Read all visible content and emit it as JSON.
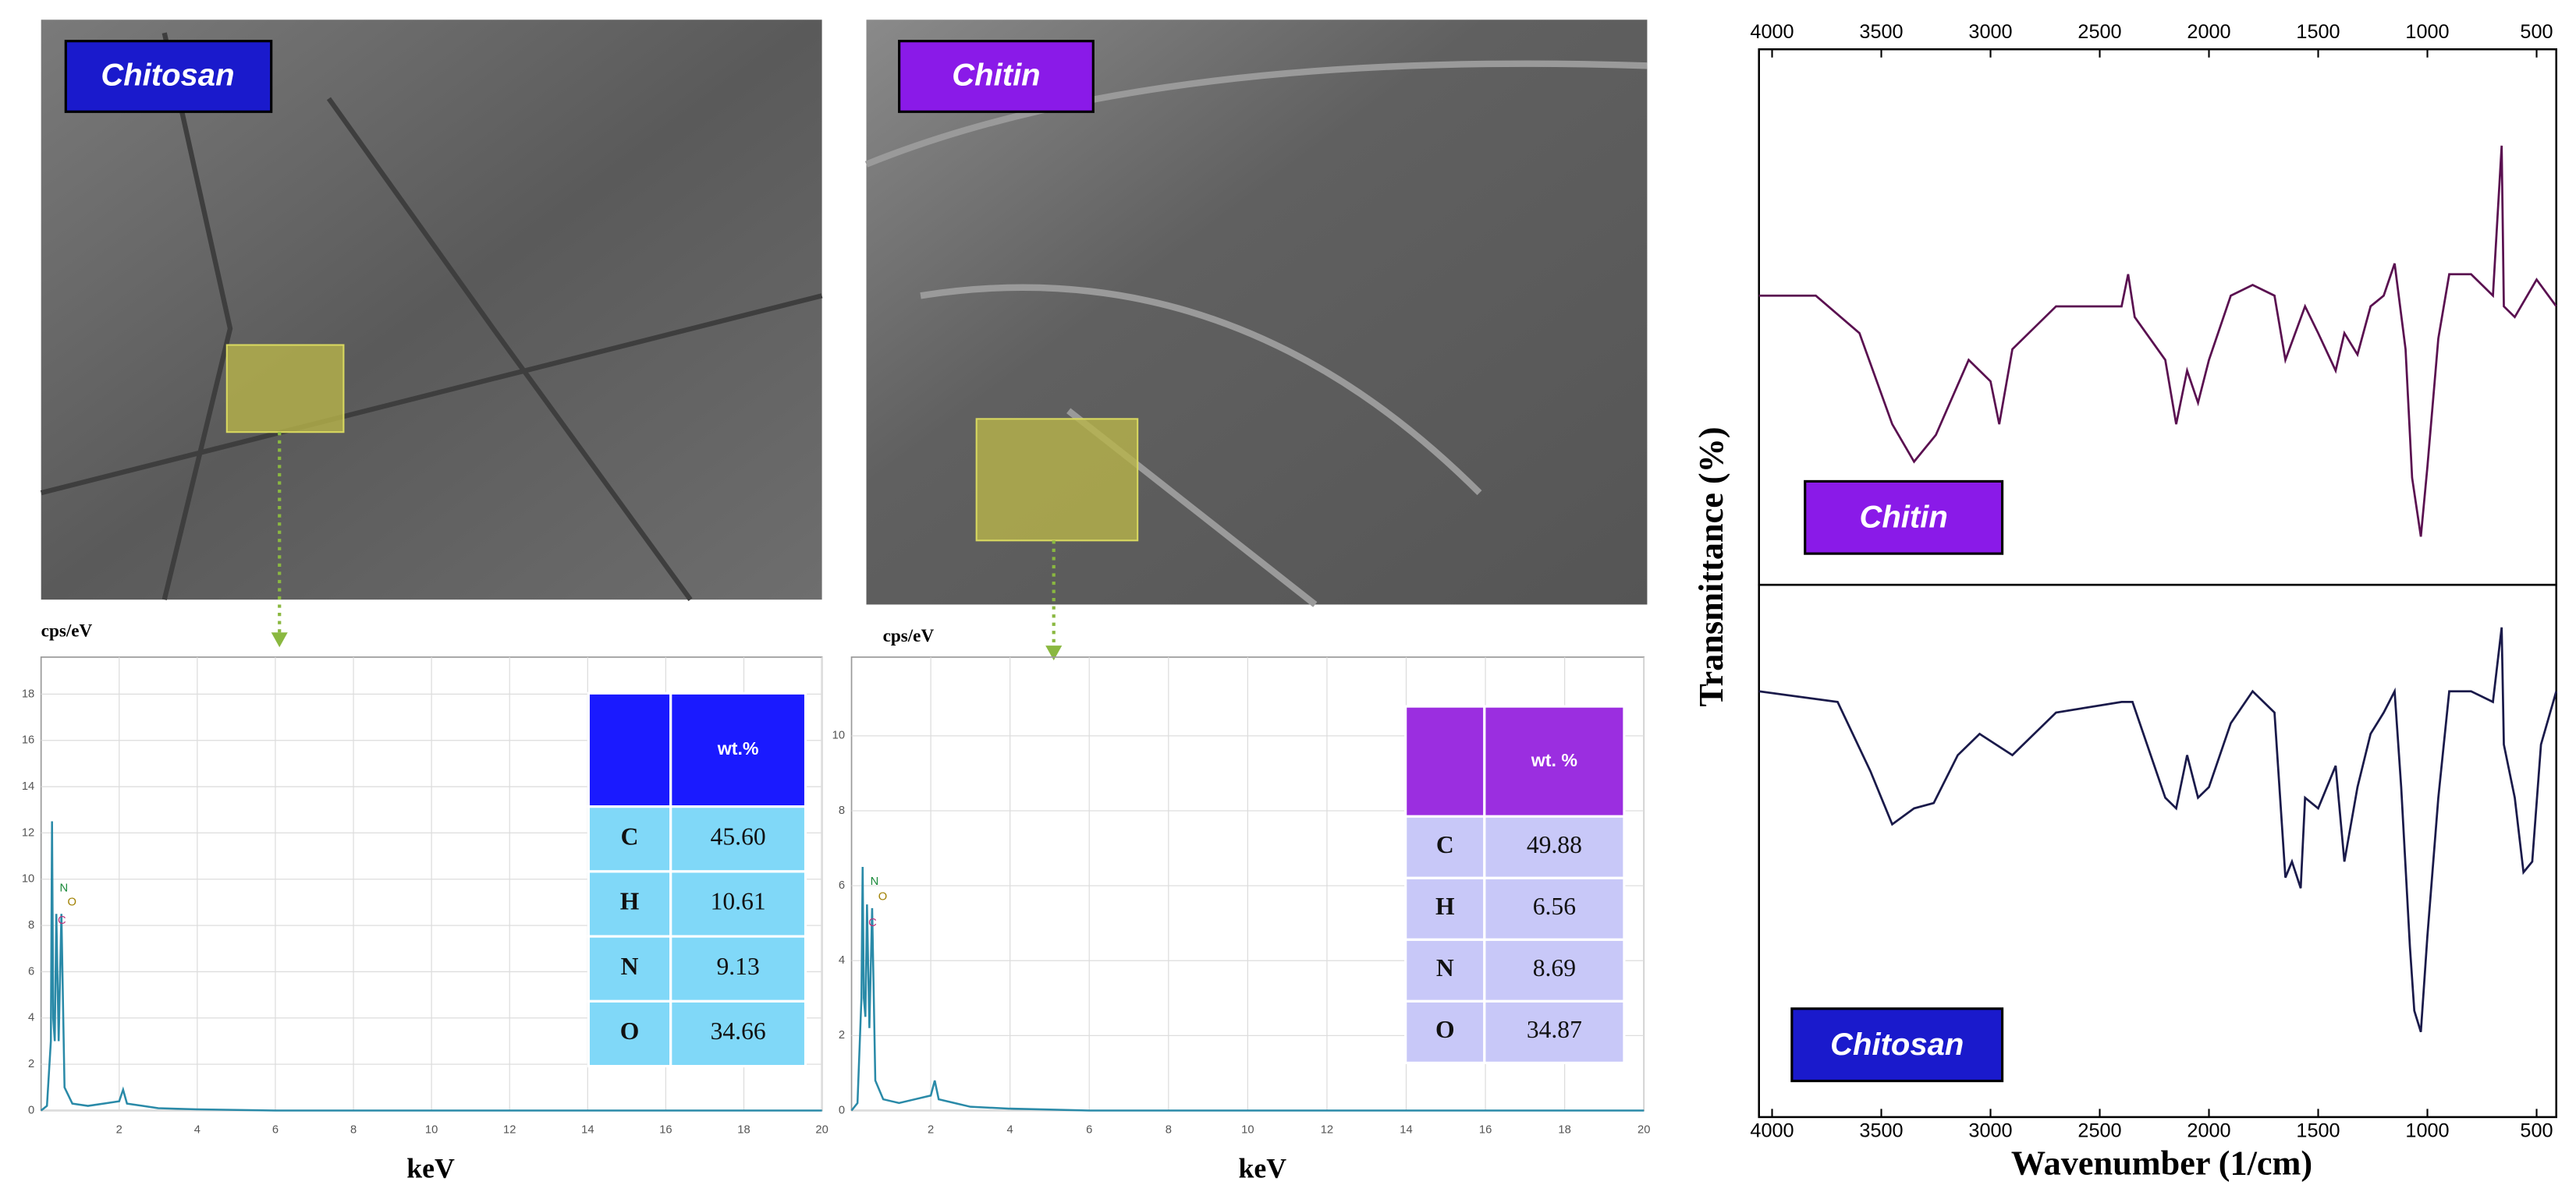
{
  "sem_images": [
    {
      "label": "Chitosan"
    },
    {
      "label": "Chitin"
    }
  ],
  "chart_data": [
    {
      "type": "line",
      "y_label": "cps/eV",
      "x_label": "keV",
      "xlim": [
        0,
        20
      ],
      "xticks": [
        2,
        4,
        6,
        8,
        10,
        12,
        14,
        16,
        18,
        20
      ],
      "ylim": [
        0,
        19.6
      ],
      "yticks": [
        0,
        2,
        4,
        6,
        8,
        10,
        12,
        14,
        16,
        18
      ],
      "grid": true,
      "series": [
        {
          "color": "#2a8aa8",
          "x": [
            0,
            0.15,
            0.25,
            0.28,
            0.31,
            0.35,
            0.39,
            0.45,
            0.52,
            0.6,
            0.8,
            1.2,
            1.6,
            2.0,
            2.1,
            2.2,
            2.6,
            3.0,
            4,
            6,
            10,
            20
          ],
          "values": [
            0,
            0.2,
            3,
            12.5,
            4,
            3,
            8.5,
            3,
            8.5,
            1,
            0.3,
            0.2,
            0.3,
            0.4,
            0.9,
            0.3,
            0.2,
            0.1,
            0.05,
            0,
            0,
            0
          ]
        }
      ],
      "peak_labels": [
        {
          "text": "N",
          "x": 0.35,
          "y": 9.6
        },
        {
          "text": "O",
          "x": 0.55,
          "y": 9.0
        },
        {
          "text": "C",
          "x": 0.3,
          "y": 8.2
        }
      ],
      "table": {
        "header": "wt.%",
        "header_color": "#1a1aff",
        "cell_color": "#80d8f8",
        "rows": [
          [
            "C",
            "45.60"
          ],
          [
            "H",
            "10.61"
          ],
          [
            "N",
            "9.13"
          ],
          [
            "O",
            "34.66"
          ]
        ]
      }
    },
    {
      "type": "line",
      "y_label": "cps/eV",
      "x_label": "keV",
      "xlim": [
        0,
        20
      ],
      "xticks": [
        2,
        4,
        6,
        8,
        10,
        12,
        14,
        16,
        18,
        20
      ],
      "ylim": [
        0,
        12.1
      ],
      "yticks": [
        0,
        2,
        4,
        6,
        8,
        10
      ],
      "grid": true,
      "series": [
        {
          "color": "#2a8aa8",
          "x": [
            0,
            0.15,
            0.25,
            0.28,
            0.31,
            0.35,
            0.39,
            0.45,
            0.52,
            0.6,
            0.8,
            1.2,
            1.6,
            2.0,
            2.1,
            2.2,
            2.6,
            3.0,
            4,
            6,
            10,
            20
          ],
          "values": [
            0,
            0.2,
            3,
            6.5,
            3,
            2.5,
            5.5,
            2.2,
            5.4,
            0.8,
            0.3,
            0.2,
            0.3,
            0.4,
            0.8,
            0.3,
            0.2,
            0.1,
            0.05,
            0,
            0,
            0
          ]
        }
      ],
      "peak_labels": [
        {
          "text": "N",
          "x": 0.35,
          "y": 6.1
        },
        {
          "text": "O",
          "x": 0.55,
          "y": 5.7
        },
        {
          "text": "C",
          "x": 0.3,
          "y": 5.0
        }
      ],
      "table": {
        "header": "wt. %",
        "header_color": "#9b2ee0",
        "cell_color": "#c8c8f8",
        "rows": [
          [
            "C",
            "49.88"
          ],
          [
            "H",
            "6.56"
          ],
          [
            "N",
            "8.69"
          ],
          [
            "O",
            "34.87"
          ]
        ]
      }
    },
    {
      "type": "line",
      "y_label": "Transmittance (%)",
      "label": "Chitin",
      "label_color": "#8a1ae8",
      "xlim": [
        4060,
        410
      ],
      "xticks": [
        4000,
        3500,
        3000,
        2500,
        2000,
        1500,
        1000,
        500
      ],
      "ylim": [
        0,
        100
      ],
      "series": [
        {
          "color": "#5a1050",
          "x": [
            4060,
            3800,
            3600,
            3450,
            3350,
            3250,
            3100,
            3000,
            2960,
            2900,
            2700,
            2400,
            2370,
            2340,
            2200,
            2150,
            2100,
            2050,
            2000,
            1900,
            1800,
            1700,
            1650,
            1560,
            1500,
            1420,
            1380,
            1320,
            1260,
            1200,
            1150,
            1100,
            1070,
            1030,
            1000,
            950,
            900,
            800,
            700,
            660,
            650,
            600,
            500,
            410
          ],
          "values": [
            54,
            54,
            47,
            30,
            23,
            28,
            42,
            38,
            30,
            44,
            52,
            52,
            58,
            50,
            42,
            30,
            40,
            34,
            42,
            54,
            56,
            54,
            42,
            52,
            47,
            40,
            47,
            43,
            52,
            54,
            60,
            44,
            20,
            9,
            22,
            46,
            58,
            58,
            54,
            82,
            52,
            50,
            57,
            52
          ]
        }
      ]
    },
    {
      "type": "line",
      "x_label": "Wavenumber (1/cm)",
      "label": "Chitosan",
      "label_color": "#1a1acc",
      "xlim": [
        4060,
        410
      ],
      "xticks": [
        4000,
        3500,
        3000,
        2500,
        2000,
        1500,
        1000,
        500
      ],
      "ylim": [
        0,
        100
      ],
      "series": [
        {
          "color": "#1a1a4a",
          "x": [
            4060,
            3700,
            3550,
            3450,
            3350,
            3260,
            3150,
            3050,
            2900,
            2700,
            2400,
            2350,
            2200,
            2150,
            2100,
            2050,
            2000,
            1900,
            1800,
            1700,
            1650,
            1620,
            1580,
            1560,
            1500,
            1420,
            1380,
            1320,
            1260,
            1200,
            1150,
            1120,
            1080,
            1060,
            1030,
            1000,
            950,
            900,
            800,
            700,
            660,
            650,
            600,
            560,
            520,
            480,
            410
          ],
          "values": [
            80,
            78,
            65,
            55,
            58,
            59,
            68,
            72,
            68,
            76,
            78,
            78,
            60,
            58,
            68,
            60,
            62,
            74,
            80,
            76,
            45,
            48,
            43,
            60,
            58,
            66,
            48,
            62,
            72,
            76,
            80,
            62,
            32,
            20,
            16,
            34,
            60,
            80,
            80,
            78,
            92,
            70,
            60,
            46,
            48,
            70,
            80
          ]
        }
      ]
    }
  ]
}
